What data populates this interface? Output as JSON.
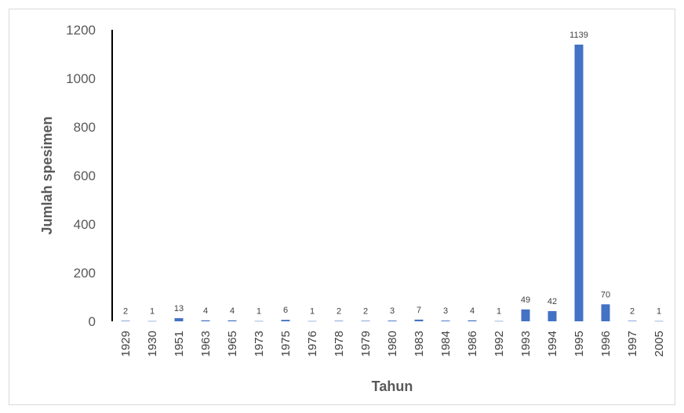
{
  "chart_data": {
    "type": "bar",
    "title": "",
    "xlabel": "Tahun",
    "ylabel": "Jumlah spesimen",
    "ylim": [
      0,
      1200
    ],
    "yticks": [
      0,
      200,
      400,
      600,
      800,
      1000,
      1200
    ],
    "grid": false,
    "legend": "none",
    "bar_color": "#4472c4",
    "categories": [
      "1929",
      "1930",
      "1951",
      "1963",
      "1965",
      "1973",
      "1975",
      "1976",
      "1978",
      "1979",
      "1980",
      "1983",
      "1984",
      "1986",
      "1992",
      "1993",
      "1994",
      "1995",
      "1996",
      "1997",
      "2005"
    ],
    "values": [
      2,
      1,
      13,
      4,
      4,
      1,
      6,
      1,
      2,
      2,
      3,
      7,
      3,
      4,
      1,
      49,
      42,
      1139,
      70,
      2,
      1
    ]
  }
}
